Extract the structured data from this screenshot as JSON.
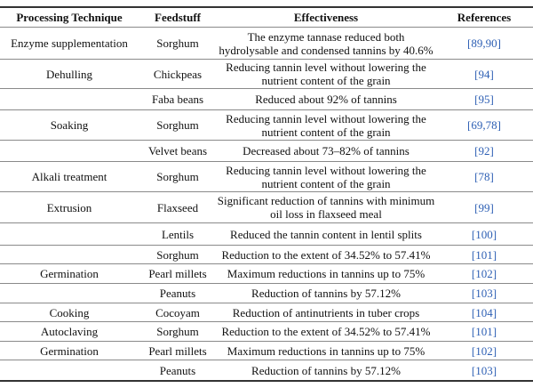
{
  "headers": {
    "technique": "Processing Technique",
    "feedstuff": "Feedstuff",
    "effectiveness": "Effectiveness",
    "references": "References"
  },
  "rows": [
    {
      "technique": "Enzyme supplementation",
      "feedstuff": "Sorghum",
      "effectiveness": "The enzyme tannase reduced both hydrolysable and condensed tannins by 40.6%",
      "references": "[89,90]"
    },
    {
      "technique": "Dehulling",
      "feedstuff": "Chickpeas",
      "effectiveness": "Reducing tannin level without lowering the nutrient content of the grain",
      "references": "[94]"
    },
    {
      "technique": "",
      "feedstuff": "Faba beans",
      "effectiveness": "Reduced about 92% of tannins",
      "references": "[95]"
    },
    {
      "technique": "Soaking",
      "feedstuff": "Sorghum",
      "effectiveness": "Reducing tannin level without lowering the nutrient content of the grain",
      "references": "[69,78]"
    },
    {
      "technique": "",
      "feedstuff": "Velvet beans",
      "effectiveness": "Decreased about 73–82% of tannins",
      "references": "[92]"
    },
    {
      "technique": "Alkali treatment",
      "feedstuff": "Sorghum",
      "effectiveness": "Reducing tannin level without lowering the nutrient content of the grain",
      "references": "[78]"
    },
    {
      "technique": "Extrusion",
      "feedstuff": "Flaxseed",
      "effectiveness": "Significant reduction of tannins with minimum oil loss in flaxseed meal",
      "references": "[99]"
    },
    {
      "technique": "",
      "feedstuff": "Lentils",
      "effectiveness": "Reduced the tannin content in lentil splits",
      "references": "[100]"
    },
    {
      "technique": "",
      "feedstuff": "Sorghum",
      "effectiveness": "Reduction to the extent of 34.52% to 57.41%",
      "references": "[101]"
    },
    {
      "technique": "Germination",
      "feedstuff": "Pearl millets",
      "effectiveness": "Maximum reductions in tannins up to 75%",
      "references": "[102]"
    },
    {
      "technique": "",
      "feedstuff": "Peanuts",
      "effectiveness": "Reduction of tannins by 57.12%",
      "references": "[103]"
    },
    {
      "technique": "Cooking",
      "feedstuff": "Cocoyam",
      "effectiveness": "Reduction of antinutrients in tuber crops",
      "references": "[104]"
    },
    {
      "technique": "Autoclaving",
      "feedstuff": "Sorghum",
      "effectiveness": "Reduction to the extent of 34.52% to 57.41%",
      "references": "[101]"
    },
    {
      "technique": "Germination",
      "feedstuff": "Pearl millets",
      "effectiveness": "Maximum reductions in tannins up to 75%",
      "references": "[102]"
    },
    {
      "technique": "",
      "feedstuff": "Peanuts",
      "effectiveness": "Reduction of tannins by 57.12%",
      "references": "[103]"
    }
  ]
}
